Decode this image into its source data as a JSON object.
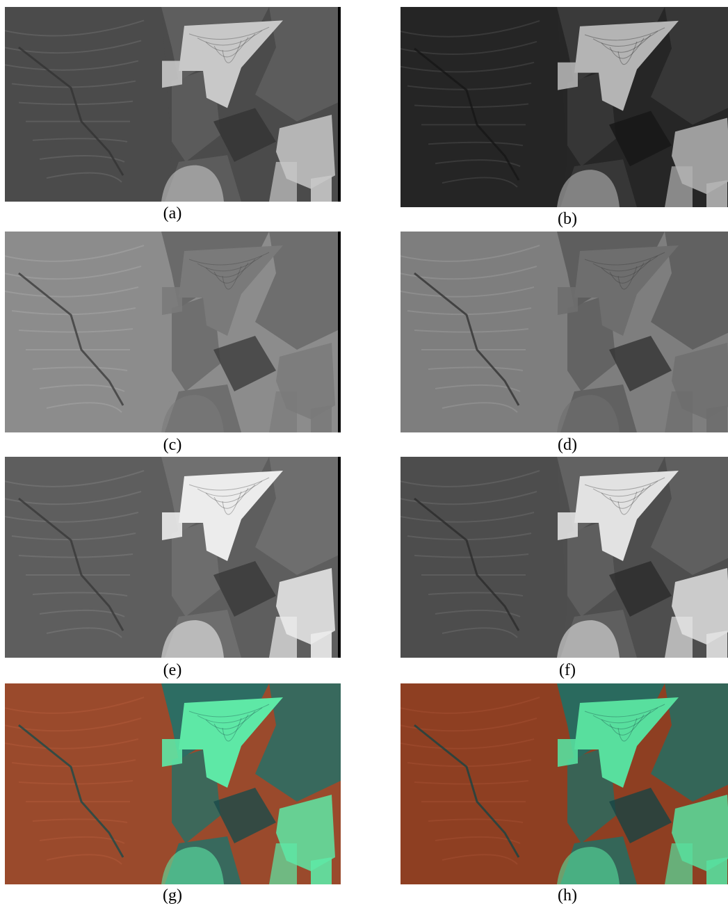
{
  "figure": {
    "panels": [
      {
        "id": "a",
        "label": "(a)",
        "render": "gray",
        "tone": "dark",
        "has_right_bar": true
      },
      {
        "id": "b",
        "label": "(b)",
        "render": "gray",
        "tone": "darker",
        "has_right_bar": false
      },
      {
        "id": "c",
        "label": "(c)",
        "render": "gray",
        "tone": "light",
        "has_right_bar": true
      },
      {
        "id": "d",
        "label": "(d)",
        "render": "gray",
        "tone": "light-dim",
        "has_right_bar": false
      },
      {
        "id": "e",
        "label": "(e)",
        "render": "gray",
        "tone": "contrast",
        "has_right_bar": true
      },
      {
        "id": "f",
        "label": "(f)",
        "render": "gray",
        "tone": "contrast-dim",
        "has_right_bar": false
      },
      {
        "id": "g",
        "label": "(g)",
        "render": "false-color",
        "tone": "color",
        "has_right_bar": false
      },
      {
        "id": "h",
        "label": "(h)",
        "render": "false-color",
        "tone": "color-dim",
        "has_right_bar": false
      }
    ],
    "palette": {
      "dark": {
        "bg": "#4b4b4b",
        "mid": "#5e5e5e",
        "hi": "#c8c8c8",
        "lo": "#333333",
        "line": "#6e6e6e"
      },
      "darker": {
        "bg": "#262626",
        "mid": "#3a3a3a",
        "hi": "#b4b4b4",
        "lo": "#161616",
        "line": "#4a4a4a"
      },
      "light": {
        "bg": "#8c8c8c",
        "mid": "#6a6a6a",
        "hi": "#7a7a7a",
        "lo": "#3c3c3c",
        "line": "#a6a6a6"
      },
      "light-dim": {
        "bg": "#7e7e7e",
        "mid": "#5e5e5e",
        "hi": "#6e6e6e",
        "lo": "#333333",
        "line": "#999999"
      },
      "contrast": {
        "bg": "#5e5e5e",
        "mid": "#707070",
        "hi": "#ececec",
        "lo": "#383838",
        "line": "#7c7c7c"
      },
      "contrast-dim": {
        "bg": "#4e4e4e",
        "mid": "#626262",
        "hi": "#e2e2e2",
        "lo": "#2c2c2c",
        "line": "#6c6c6c"
      },
      "color": {
        "bg": "#9a4a2c",
        "mid": "#2d6d63",
        "hi": "#5ee8a6",
        "lo": "#1a4a4a",
        "line": "#b05a3a"
      },
      "color-dim": {
        "bg": "#8e3f22",
        "mid": "#2a6a5e",
        "hi": "#58df9e",
        "lo": "#184444",
        "line": "#a34e32"
      }
    }
  }
}
